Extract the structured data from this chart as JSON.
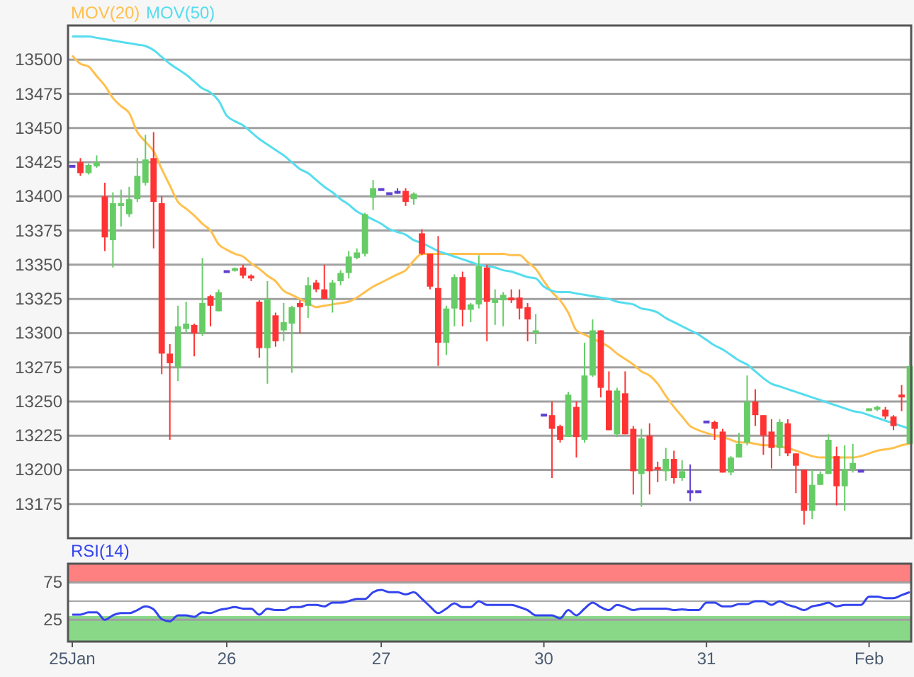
{
  "chart_data": [
    {
      "type": "candlestick",
      "legend": "top left",
      "grid": "y",
      "tick_labels": "y",
      "categories": [
        null,
        null,
        null,
        null,
        null,
        null,
        null,
        null,
        null,
        null,
        null,
        null,
        null,
        null,
        null,
        null,
        null,
        null,
        null,
        null,
        null,
        null,
        null,
        null,
        null,
        null,
        null,
        null,
        null,
        null,
        null,
        null,
        null,
        null,
        null,
        null,
        null,
        null,
        null,
        null,
        null,
        null,
        null,
        null,
        null,
        null,
        null,
        null,
        null,
        null,
        null,
        null,
        null,
        null,
        null,
        null,
        null,
        null,
        null,
        null,
        null,
        null,
        null,
        null,
        null,
        null,
        null,
        null,
        null,
        null,
        null,
        null,
        null,
        null,
        null,
        null,
        null,
        null,
        null,
        null,
        null,
        null,
        null,
        null,
        null,
        null,
        null,
        null,
        null,
        null,
        null,
        null,
        null,
        null,
        null,
        null,
        null,
        null,
        null,
        null,
        null,
        null,
        null,
        null
      ],
      "ylim": [
        13150,
        13525
      ],
      "yticks": [
        13175,
        13200,
        13225,
        13250,
        13275,
        13300,
        13325,
        13350,
        13375,
        13400,
        13425,
        13450,
        13475,
        13500
      ],
      "ohlc": [
        [
          13422,
          13422,
          13422,
          13422
        ],
        [
          13425,
          13428,
          13415,
          13417
        ],
        [
          13417,
          13424,
          13416,
          13423
        ],
        [
          13422,
          13430,
          13421,
          13425
        ],
        [
          13400,
          13410,
          13360,
          13370
        ],
        [
          13368,
          13403,
          13348,
          13395
        ],
        [
          13393,
          13405,
          13378,
          13395
        ],
        [
          13387,
          13407,
          13385,
          13398
        ],
        [
          13398,
          13428,
          13396,
          13415
        ],
        [
          13410,
          13445,
          13408,
          13427
        ],
        [
          13428,
          13447,
          13362,
          13396
        ],
        [
          13395,
          13400,
          13270,
          13285
        ],
        [
          13285,
          13292,
          13222,
          13278
        ],
        [
          13275,
          13320,
          13265,
          13305
        ],
        [
          13303,
          13323,
          13300,
          13307
        ],
        [
          13306,
          13307,
          13283,
          13300
        ],
        [
          13300,
          13355,
          13298,
          13322
        ],
        [
          13327,
          13328,
          13305,
          13320
        ],
        [
          13316,
          13332,
          13316,
          13330
        ],
        [
          13345,
          13345,
          13345,
          13345
        ],
        [
          13346,
          13348,
          13345,
          13347
        ],
        [
          13348,
          13350,
          13340,
          13342
        ],
        [
          13342,
          13343,
          13338,
          13340
        ],
        [
          13323,
          13324,
          13282,
          13289
        ],
        [
          13289,
          13338,
          13263,
          13325
        ],
        [
          13313,
          13315,
          13290,
          13294
        ],
        [
          13302,
          13322,
          13294,
          13308
        ],
        [
          13307,
          13320,
          13271,
          13319
        ],
        [
          13322,
          13324,
          13300,
          13319
        ],
        [
          13320,
          13341,
          13311,
          13335
        ],
        [
          13337,
          13339,
          13330,
          13332
        ],
        [
          13332,
          13350,
          13325,
          13325
        ],
        [
          13325,
          13339,
          13315,
          13337
        ],
        [
          13338,
          13346,
          13335,
          13344
        ],
        [
          13344,
          13360,
          13340,
          13356
        ],
        [
          13355,
          13362,
          13354,
          13359
        ],
        [
          13358,
          13388,
          13356,
          13387
        ],
        [
          13399,
          13412,
          13390,
          13406
        ],
        [
          13405,
          13405,
          13405,
          13405
        ],
        [
          13402,
          13402,
          13402,
          13402
        ],
        [
          13403,
          13406,
          13402,
          13403
        ],
        [
          13404,
          13406,
          13393,
          13396
        ],
        [
          13398,
          13403,
          13394,
          13402
        ],
        [
          13373,
          13376,
          13357,
          13358
        ],
        [
          13358,
          13358,
          13332,
          13334
        ],
        [
          13333,
          13371,
          13276,
          13293
        ],
        [
          13293,
          13320,
          13284,
          13318
        ],
        [
          13318,
          13343,
          13305,
          13341
        ],
        [
          13341,
          13345,
          13305,
          13317
        ],
        [
          13317,
          13322,
          13308,
          13321
        ],
        [
          13321,
          13357,
          13318,
          13349
        ],
        [
          13348,
          13350,
          13294,
          13323
        ],
        [
          13322,
          13332,
          13306,
          13325
        ],
        [
          13324,
          13330,
          13305,
          13328
        ],
        [
          13326,
          13332,
          13322,
          13324
        ],
        [
          13326,
          13332,
          13310,
          13318
        ],
        [
          13319,
          13322,
          13294,
          13310
        ],
        [
          13300,
          13314,
          13292,
          13302
        ],
        [
          13240,
          13240,
          13240,
          13240
        ],
        [
          13240,
          13250,
          13194,
          13230
        ],
        [
          13232,
          13233,
          13220,
          13222
        ],
        [
          13224,
          13257,
          13224,
          13255
        ],
        [
          13246,
          13250,
          13209,
          13224
        ],
        [
          13222,
          13293,
          13220,
          13269
        ],
        [
          13269,
          13310,
          13268,
          13302
        ],
        [
          13302,
          13302,
          13253,
          13260
        ],
        [
          13258,
          13272,
          13229,
          13229
        ],
        [
          13226,
          13260,
          13224,
          13258
        ],
        [
          13256,
          13272,
          13226,
          13226
        ],
        [
          13230,
          13232,
          13182,
          13199
        ],
        [
          13197,
          13230,
          13173,
          13223
        ],
        [
          13225,
          13234,
          13182,
          13199
        ],
        [
          13202,
          13206,
          13191,
          13200
        ],
        [
          13199,
          13216,
          13192,
          13208
        ],
        [
          13208,
          13214,
          13190,
          13194
        ],
        [
          13194,
          13207,
          13192,
          13199
        ],
        [
          13184,
          13204,
          13177,
          13184
        ],
        [
          13184,
          13184,
          13184,
          13184
        ],
        [
          13235,
          13235,
          13235,
          13235
        ],
        [
          13235,
          13236,
          13222,
          13230
        ],
        [
          13228,
          13230,
          13198,
          13198
        ],
        [
          13198,
          13210,
          13196,
          13209
        ],
        [
          13209,
          13227,
          13209,
          13219
        ],
        [
          13220,
          13269,
          13218,
          13250
        ],
        [
          13250,
          13259,
          13232,
          13240
        ],
        [
          13240,
          13240,
          13211,
          13225
        ],
        [
          13228,
          13237,
          13201,
          13216
        ],
        [
          13216,
          13237,
          13210,
          13235
        ],
        [
          13234,
          13237,
          13210,
          13212
        ],
        [
          13212,
          13212,
          13183,
          13203
        ],
        [
          13200,
          13200,
          13160,
          13170
        ],
        [
          13170,
          13200,
          13164,
          13189
        ],
        [
          13189,
          13199,
          13189,
          13197
        ],
        [
          13197,
          13226,
          13197,
          13222
        ],
        [
          13210,
          13217,
          13174,
          13188
        ],
        [
          13188,
          13218,
          13170,
          13200
        ],
        [
          13200,
          13219,
          13198,
          13205
        ],
        [
          13199,
          13199,
          13199,
          13199
        ],
        [
          13243,
          13245,
          13243,
          13245
        ],
        [
          13244,
          13247,
          13243,
          13246
        ],
        [
          13244,
          13246,
          13237,
          13239
        ],
        [
          13239,
          13240,
          13229,
          13232
        ],
        [
          13255,
          13262,
          13243,
          13253
        ],
        [
          13219,
          13298,
          13219,
          13276
        ]
      ],
      "colors": [
        "#6040d0",
        "#ff3333",
        "#66cc66",
        "#66cc66",
        "#ff3333",
        "#66cc66",
        "#66cc66",
        "#66cc66",
        "#66cc66",
        "#66cc66",
        "#ff3333",
        "#ff3333",
        "#ff3333",
        "#66cc66",
        "#66cc66",
        "#ff3333",
        "#66cc66",
        "#ff3333",
        "#66cc66",
        "#6040d0",
        "#66cc66",
        "#ff3333",
        "#ff3333",
        "#ff3333",
        "#66cc66",
        "#ff3333",
        "#66cc66",
        "#66cc66",
        "#ff3333",
        "#66cc66",
        "#ff3333",
        "#ff3333",
        "#66cc66",
        "#66cc66",
        "#66cc66",
        "#66cc66",
        "#66cc66",
        "#66cc66",
        "#6040d0",
        "#6040d0",
        "#6040d0",
        "#ff3333",
        "#66cc66",
        "#ff3333",
        "#ff3333",
        "#ff3333",
        "#66cc66",
        "#66cc66",
        "#ff3333",
        "#66cc66",
        "#66cc66",
        "#ff3333",
        "#66cc66",
        "#66cc66",
        "#ff3333",
        "#ff3333",
        "#ff3333",
        "#66cc66",
        "#6040d0",
        "#ff3333",
        "#ff3333",
        "#66cc66",
        "#ff3333",
        "#66cc66",
        "#66cc66",
        "#ff3333",
        "#ff3333",
        "#66cc66",
        "#ff3333",
        "#ff3333",
        "#66cc66",
        "#ff3333",
        "#ff3333",
        "#66cc66",
        "#ff3333",
        "#66cc66",
        "#6040d0",
        "#6040d0",
        "#6040d0",
        "#ff3333",
        "#ff3333",
        "#66cc66",
        "#66cc66",
        "#66cc66",
        "#ff3333",
        "#ff3333",
        "#ff3333",
        "#66cc66",
        "#ff3333",
        "#ff3333",
        "#ff3333",
        "#66cc66",
        "#66cc66",
        "#66cc66",
        "#ff3333",
        "#66cc66",
        "#66cc66",
        "#6040d0",
        "#66cc66",
        "#66cc66",
        "#ff3333",
        "#ff3333",
        "#ff3333",
        "#66cc66"
      ],
      "series": [
        {
          "type": "line",
          "name": "MOV(20)",
          "color": "#ffc04d",
          "values": [
            13503,
            13497,
            13495,
            13488,
            13481,
            13472,
            13466,
            13461,
            13447,
            13440,
            13433,
            13420,
            13408,
            13396,
            13391,
            13386,
            13380,
            13375,
            13365,
            13361,
            13358,
            13356,
            13351,
            13347,
            13342,
            13338,
            13331,
            13328,
            13325,
            13322,
            13319,
            13320,
            13321,
            13322,
            13323,
            13326,
            13330,
            13334,
            13337,
            13340,
            13343,
            13346,
            13353,
            13358,
            13358,
            13358,
            13358,
            13358,
            13358,
            13358,
            13358,
            13358,
            13358,
            13358,
            13357,
            13357,
            13352,
            13347,
            13338,
            13330,
            13324,
            13315,
            13302,
            13299,
            13296,
            13293,
            13290,
            13285,
            13281,
            13277,
            13272,
            13269,
            13263,
            13254,
            13246,
            13239,
            13232,
            13229,
            13227,
            13225,
            13224,
            13222,
            13220,
            13220,
            13219,
            13218,
            13218,
            13217,
            13216,
            13214,
            13212,
            13210,
            13209,
            13209,
            13209,
            13209,
            13209,
            13210,
            13212,
            13214,
            13215,
            13216,
            13218,
            13219
          ]
        },
        {
          "type": "line",
          "name": "MOV(50)",
          "color": "#55ddee",
          "values": [
            13517,
            13517,
            13517,
            13516,
            13515,
            13514,
            13513,
            13512,
            13511,
            13510,
            13507,
            13502,
            13497,
            13493,
            13489,
            13484,
            13479,
            13476,
            13470,
            13459,
            13455,
            13452,
            13447,
            13442,
            13438,
            13434,
            13430,
            13425,
            13420,
            13417,
            13412,
            13407,
            13403,
            13398,
            13394,
            13389,
            13386,
            13383,
            13380,
            13376,
            13374,
            13372,
            13368,
            13366,
            13363,
            13360,
            13358,
            13356,
            13354,
            13352,
            13350,
            13349,
            13348,
            13346,
            13345,
            13343,
            13341,
            13340,
            13334,
            13331,
            13330,
            13330,
            13329,
            13328,
            13327,
            13326,
            13325,
            13323,
            13322,
            13321,
            13318,
            13317,
            13315,
            13311,
            13308,
            13305,
            13302,
            13299,
            13295,
            13291,
            13288,
            13284,
            13280,
            13277,
            13272,
            13267,
            13263,
            13261,
            13259,
            13257,
            13255,
            13253,
            13251,
            13249,
            13247,
            13245,
            13243,
            13242,
            13240,
            13238,
            13236,
            13234,
            13232,
            13230
          ]
        }
      ]
    },
    {
      "type": "line",
      "legend": "top left",
      "grid": "y",
      "categories": [
        "25Jan",
        null,
        null,
        null,
        null,
        null,
        null,
        null,
        null,
        null,
        null,
        null,
        null,
        null,
        null,
        null,
        null,
        null,
        null,
        "26",
        null,
        null,
        null,
        null,
        null,
        null,
        null,
        null,
        null,
        null,
        null,
        null,
        null,
        null,
        null,
        null,
        null,
        null,
        "27",
        null,
        null,
        null,
        null,
        null,
        null,
        null,
        null,
        null,
        null,
        null,
        null,
        null,
        null,
        null,
        null,
        null,
        null,
        null,
        "30",
        null,
        null,
        null,
        null,
        null,
        null,
        null,
        null,
        null,
        null,
        null,
        null,
        null,
        null,
        null,
        null,
        null,
        null,
        null,
        "31",
        null,
        null,
        null,
        null,
        null,
        null,
        null,
        null,
        null,
        null,
        null,
        null,
        null,
        null,
        null,
        null,
        null,
        null,
        null,
        "Feb",
        null,
        null,
        null,
        null,
        null
      ],
      "ylim": [
        -4,
        100
      ],
      "yticks": [
        25,
        75
      ],
      "bands": [
        {
          "axis": "y",
          "from": 75,
          "to": 100,
          "color": "#ff8080"
        },
        {
          "axis": "y",
          "from": -4,
          "to": 30,
          "color": "#88d888"
        }
      ],
      "ref_lines": [
        {
          "axis": "y",
          "value": 50,
          "color": "#aaaaaa"
        }
      ],
      "series": [
        {
          "name": "RSI(14)",
          "color": "#3344ee",
          "values": [
            32,
            32,
            35,
            35,
            25,
            31,
            34,
            34,
            38,
            43,
            39,
            26,
            23,
            31,
            31,
            29,
            35,
            34,
            38,
            40,
            42,
            40,
            40,
            32,
            40,
            38,
            38,
            42,
            42,
            45,
            45,
            43,
            48,
            48,
            50,
            53,
            53,
            62,
            65,
            62,
            62,
            59,
            62,
            53,
            43,
            34,
            40,
            47,
            42,
            42,
            50,
            45,
            45,
            45,
            45,
            42,
            38,
            31,
            31,
            31,
            27,
            38,
            31,
            40,
            48,
            42,
            38,
            45,
            42,
            38,
            40,
            40,
            40,
            40,
            38,
            39,
            38,
            38,
            48,
            48,
            43,
            43,
            46,
            46,
            50,
            50,
            45,
            50,
            45,
            42,
            38,
            43,
            45,
            48,
            43,
            45,
            45,
            45,
            56,
            56,
            54,
            54,
            58,
            62
          ]
        }
      ]
    }
  ]
}
